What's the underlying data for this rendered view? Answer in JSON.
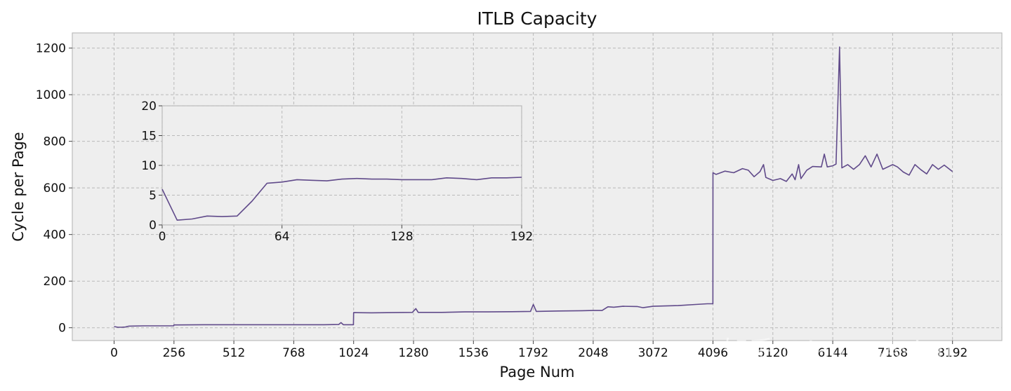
{
  "chart_data": [
    {
      "type": "line",
      "title": "ITLB Capacity",
      "xlabel": "Page Num",
      "ylabel": "Cycle per Page",
      "ylim": [
        -55,
        1265
      ],
      "yticks": [
        0,
        200,
        400,
        600,
        800,
        1000,
        1200
      ],
      "x_categories": [
        "0",
        "256",
        "512",
        "768",
        "1024",
        "1280",
        "1536",
        "1792",
        "2048",
        "3072",
        "4096",
        "5120",
        "6144",
        "7168",
        "8192"
      ],
      "grid": true,
      "series": [
        {
          "color": "#604a8a",
          "points": [
            [
              0,
              5
            ],
            [
              16,
              2
            ],
            [
              32,
              2
            ],
            [
              48,
              3
            ],
            [
              64,
              7
            ],
            [
              128,
              8
            ],
            [
              192,
              8
            ],
            [
              255,
              8
            ],
            [
              256,
              12
            ],
            [
              384,
              13
            ],
            [
              512,
              13
            ],
            [
              640,
              13
            ],
            [
              768,
              13
            ],
            [
              896,
              13
            ],
            [
              960,
              14
            ],
            [
              970,
              22
            ],
            [
              980,
              13
            ],
            [
              1023,
              13
            ],
            [
              1024,
              65
            ],
            [
              1100,
              64
            ],
            [
              1200,
              65
            ],
            [
              1275,
              66
            ],
            [
              1290,
              82
            ],
            [
              1300,
              66
            ],
            [
              1400,
              66
            ],
            [
              1500,
              68
            ],
            [
              1600,
              68
            ],
            [
              1700,
              69
            ],
            [
              1780,
              70
            ],
            [
              1792,
              100
            ],
            [
              1805,
              70
            ],
            [
              1900,
              72
            ],
            [
              2000,
              73
            ],
            [
              2048,
              74
            ],
            [
              2200,
              74
            ],
            [
              2300,
              90
            ],
            [
              2400,
              88
            ],
            [
              2560,
              92
            ],
            [
              2800,
              91
            ],
            [
              2900,
              86
            ],
            [
              3072,
              92
            ],
            [
              3500,
              95
            ],
            [
              3800,
              100
            ],
            [
              4000,
              103
            ],
            [
              4095,
              103
            ],
            [
              4096,
              665
            ],
            [
              4150,
              658
            ],
            [
              4300,
              672
            ],
            [
              4450,
              665
            ],
            [
              4600,
              683
            ],
            [
              4700,
              676
            ],
            [
              4800,
              648
            ],
            [
              4900,
              670
            ],
            [
              4960,
              700
            ],
            [
              5000,
              645
            ],
            [
              5120,
              632
            ],
            [
              5250,
              640
            ],
            [
              5350,
              628
            ],
            [
              5450,
              660
            ],
            [
              5500,
              635
            ],
            [
              5560,
              700
            ],
            [
              5600,
              640
            ],
            [
              5700,
              676
            ],
            [
              5800,
              692
            ],
            [
              5950,
              690
            ],
            [
              6000,
              745
            ],
            [
              6050,
              690
            ],
            [
              6144,
              695
            ],
            [
              6200,
              702
            ],
            [
              6260,
              1205
            ],
            [
              6300,
              686
            ],
            [
              6400,
              700
            ],
            [
              6500,
              680
            ],
            [
              6600,
              700
            ],
            [
              6700,
              738
            ],
            [
              6800,
              690
            ],
            [
              6900,
              745
            ],
            [
              7000,
              680
            ],
            [
              7168,
              700
            ],
            [
              7250,
              690
            ],
            [
              7350,
              668
            ],
            [
              7450,
              655
            ],
            [
              7550,
              700
            ],
            [
              7650,
              678
            ],
            [
              7750,
              660
            ],
            [
              7850,
              700
            ],
            [
              7950,
              680
            ],
            [
              8050,
              698
            ],
            [
              8192,
              670
            ]
          ]
        }
      ]
    },
    {
      "type": "line",
      "title": "",
      "xlabel": "",
      "ylabel": "",
      "xlim": [
        0,
        192
      ],
      "ylim": [
        0,
        20
      ],
      "xticks": [
        0,
        64,
        128,
        192
      ],
      "yticks": [
        0,
        5,
        10,
        15,
        20
      ],
      "grid": true,
      "series": [
        {
          "color": "#604a8a",
          "points": [
            [
              0,
              6
            ],
            [
              8,
              0.8
            ],
            [
              16,
              1.0
            ],
            [
              24,
              1.5
            ],
            [
              32,
              1.4
            ],
            [
              40,
              1.5
            ],
            [
              48,
              4.0
            ],
            [
              56,
              7.0
            ],
            [
              64,
              7.2
            ],
            [
              72,
              7.6
            ],
            [
              80,
              7.5
            ],
            [
              88,
              7.4
            ],
            [
              96,
              7.7
            ],
            [
              104,
              7.8
            ],
            [
              112,
              7.7
            ],
            [
              120,
              7.7
            ],
            [
              128,
              7.6
            ],
            [
              144,
              7.6
            ],
            [
              152,
              7.9
            ],
            [
              160,
              7.8
            ],
            [
              168,
              7.6
            ],
            [
              176,
              7.9
            ],
            [
              184,
              7.9
            ],
            [
              192,
              8.0
            ]
          ]
        }
      ]
    }
  ],
  "watermark": {
    "text": "知乎 @JamesAslan"
  }
}
